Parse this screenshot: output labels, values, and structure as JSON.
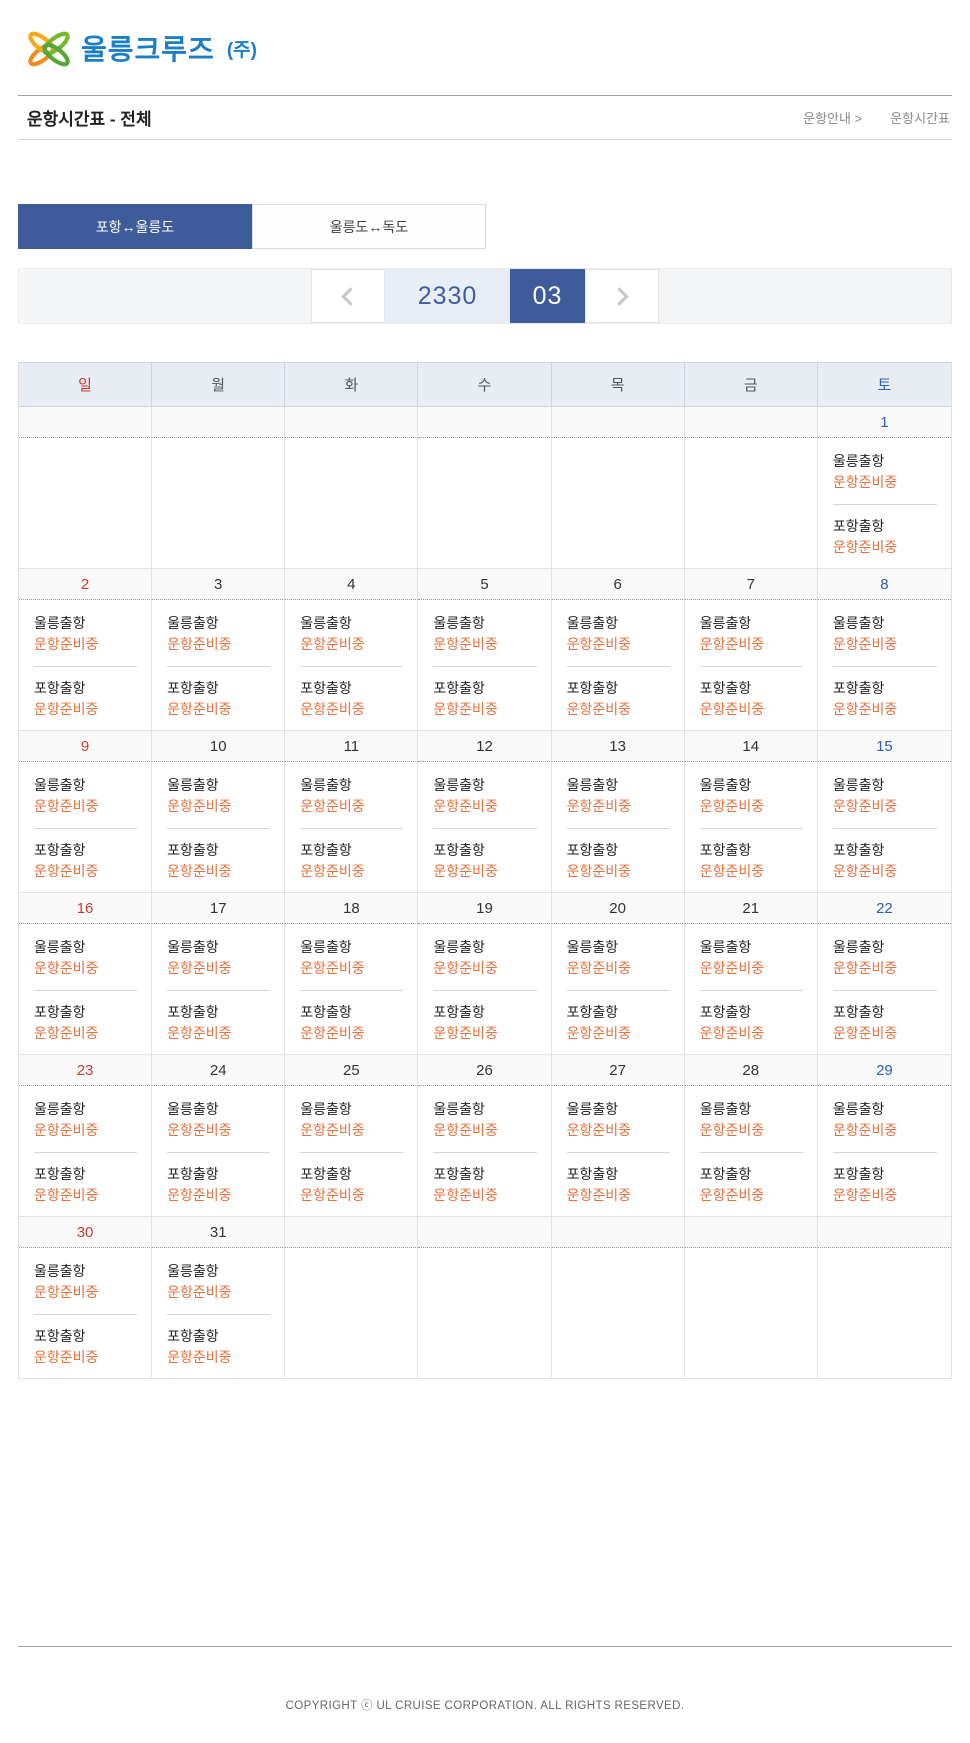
{
  "brand": {
    "name": "울릉크루즈",
    "suffix": "(주)"
  },
  "header": {
    "title": "운항시간표 - 전체",
    "breadcrumb": [
      {
        "label": "운항안내 >"
      },
      {
        "label": "운항시간표"
      }
    ]
  },
  "tabs": [
    {
      "label": "포항↔울릉도",
      "active": true
    },
    {
      "label": "울릉도↔독도",
      "active": false
    }
  ],
  "pager": {
    "year": "2330",
    "month": "03"
  },
  "calendar": {
    "weekday_headers": [
      "일",
      "월",
      "화",
      "수",
      "목",
      "금",
      "토"
    ],
    "weeks": [
      [
        null,
        null,
        null,
        null,
        null,
        null,
        1
      ],
      [
        2,
        3,
        4,
        5,
        6,
        7,
        8
      ],
      [
        9,
        10,
        11,
        12,
        13,
        14,
        15
      ],
      [
        16,
        17,
        18,
        19,
        20,
        21,
        22
      ],
      [
        23,
        24,
        25,
        26,
        27,
        28,
        29
      ],
      [
        30,
        31,
        null,
        null,
        null,
        null,
        null
      ]
    ],
    "entries": [
      {
        "label": "울릉출항",
        "status": "운항준비중"
      },
      {
        "label": "포항출항",
        "status": "운항준비중"
      }
    ]
  },
  "footer": {
    "copyright": "COPYRIGHT ⓒ UL CRUISE CORPORATION. ALL RIGHTS RESERVED."
  },
  "colors": {
    "accent_blue": "#3e5b9a",
    "logo_blue": "#1b7ec8",
    "sunday_red": "#c63d2f",
    "saturday_blue": "#2a61b5",
    "status_orange": "#e7703c",
    "header_row_bg": "#e8edf4",
    "year_box_bg": "#e9eef6"
  }
}
